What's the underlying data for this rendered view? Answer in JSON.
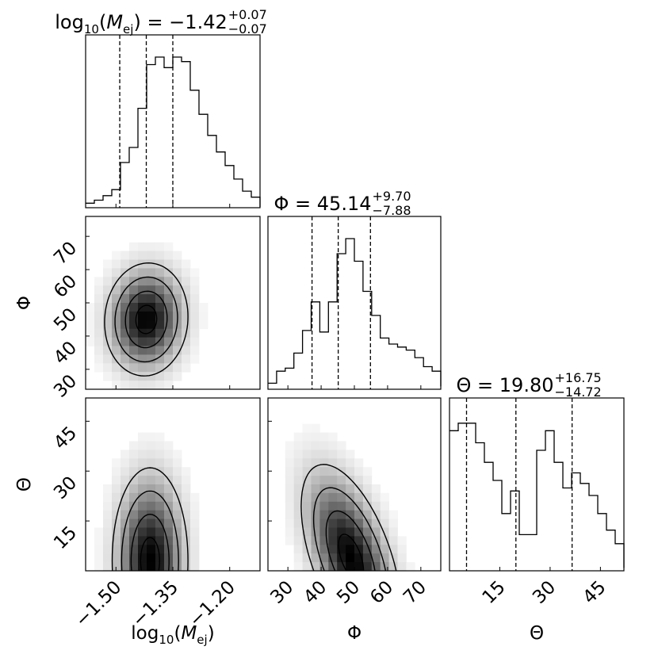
{
  "chart_data": {
    "type": "corner",
    "parameters": [
      {
        "label": "log10(M_ej)",
        "range": [
          -1.58,
          -1.12
        ],
        "ticks": [
          "-1.50",
          "-1.35",
          "-1.20"
        ],
        "median": -1.42,
        "q_low": -1.49,
        "q_high": -1.35
      },
      {
        "label": "Φ",
        "range": [
          24,
          76
        ],
        "ticks": [
          "30",
          "40",
          "50",
          "60",
          "70"
        ],
        "median": 45.14,
        "q_low": 37.26,
        "q_high": 54.84
      },
      {
        "label": "Θ",
        "range": [
          0,
          52
        ],
        "ticks": [
          "15",
          "30",
          "45"
        ],
        "median": 19.8,
        "q_low": 5.08,
        "q_high": 36.55
      }
    ],
    "titles": [
      {
        "base": "log",
        "sub1": "10",
        "mid": "(M",
        "sub2": "ej",
        "tail": ") = −1.42",
        "sup": "+0.07",
        "lo": "−0.07"
      },
      {
        "base": "Φ = 45.14",
        "sup": "+9.70",
        "lo": "−7.88"
      },
      {
        "base": "Θ = 19.80",
        "sup": "+16.75",
        "lo": "−14.72"
      }
    ],
    "x_labels": [
      {
        "base": "log",
        "sub1": "10",
        "mid": "(M",
        "sub2": "ej",
        "tail": ")"
      },
      {
        "base": "Φ"
      },
      {
        "base": "Θ"
      }
    ],
    "y_labels": [
      "Φ",
      "Θ"
    ],
    "histograms": [
      {
        "edges_start": -1.58,
        "bin_width": 0.023,
        "counts": [
          0.03,
          0.05,
          0.08,
          0.12,
          0.3,
          0.4,
          0.66,
          0.95,
          1.0,
          0.93,
          1.0,
          0.97,
          0.78,
          0.62,
          0.48,
          0.37,
          0.28,
          0.19,
          0.11,
          0.07,
          0.03,
          0.02,
          0.01,
          0.005
        ]
      },
      {
        "edges_start": 24,
        "bin_width": 2.6,
        "counts": [
          0.04,
          0.12,
          0.14,
          0.24,
          0.39,
          0.58,
          0.38,
          0.58,
          0.9,
          1.0,
          0.85,
          0.65,
          0.49,
          0.34,
          0.3,
          0.28,
          0.26,
          0.21,
          0.15,
          0.12,
          0.08,
          0.02
        ]
      },
      {
        "edges_start": 0,
        "bin_width": 2.6,
        "counts": [
          0.93,
          0.98,
          0.98,
          0.85,
          0.72,
          0.6,
          0.38,
          0.53,
          0.24,
          0.24,
          0.8,
          0.93,
          0.72,
          0.55,
          0.65,
          0.58,
          0.5,
          0.38,
          0.27,
          0.18,
          0.08,
          0.02
        ]
      }
    ],
    "joint_densities": [
      {
        "x_param": 0,
        "y_param": 1,
        "mean": [
          -1.42,
          45
        ],
        "sigma": [
          0.055,
          8.5
        ],
        "rho": 0.05
      },
      {
        "x_param": 0,
        "y_param": 2,
        "mean": [
          -1.41,
          3
        ],
        "sigma": [
          0.05,
          14
        ],
        "rho": 0.0
      },
      {
        "x_param": 1,
        "y_param": 2,
        "mean": [
          49,
          4
        ],
        "sigma": [
          7.5,
          14
        ],
        "rho": -0.55
      }
    ]
  }
}
